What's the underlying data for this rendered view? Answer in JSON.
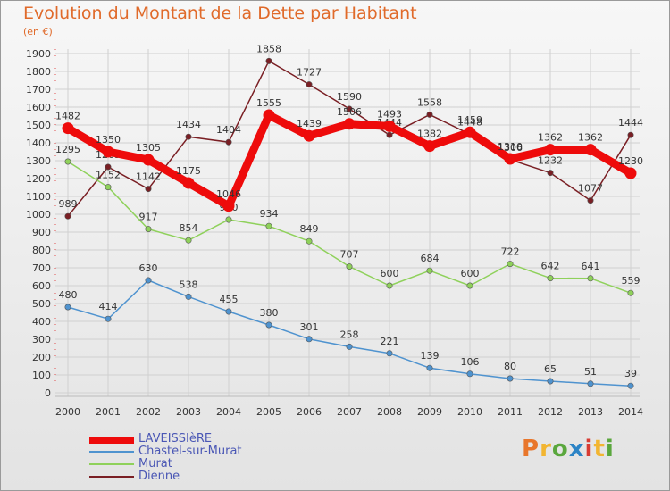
{
  "header": {
    "title": "Evolution du Montant de la Dette par Habitant",
    "subtitle": "(en €)"
  },
  "logo": {
    "text": "Proxiti",
    "colors": [
      "#e8762b",
      "#f2b531",
      "#5aa73d",
      "#2c84c6",
      "#d83c33",
      "#f2b531",
      "#5aa73d"
    ]
  },
  "chart_data": {
    "type": "line",
    "title": "Evolution du Montant de la Dette par Habitant",
    "subtitle": "(en €)",
    "xlabel": "",
    "ylabel": "",
    "ylim": [
      0,
      1900
    ],
    "yticks": [
      0,
      100,
      200,
      300,
      400,
      500,
      600,
      700,
      800,
      900,
      1000,
      1100,
      1200,
      1300,
      1400,
      1500,
      1600,
      1700,
      1800,
      1900
    ],
    "grid": true,
    "legend": "bottom-left",
    "x": [
      "2000",
      "2001",
      "2002",
      "2003",
      "2004",
      "2005",
      "2006",
      "2007",
      "2008",
      "2009",
      "2010",
      "2011",
      "2012",
      "2013",
      "2014"
    ],
    "series": [
      {
        "name": "Dienne",
        "color": "#7a1f24",
        "values": [
          989,
          1265,
          1142,
          1434,
          1404,
          1858,
          1727,
          1590,
          1444,
          1558,
          1448,
          1306,
          1232,
          1077,
          1444
        ]
      },
      {
        "name": "Murat",
        "color": "#8fd15b",
        "values": [
          1295,
          1152,
          917,
          854,
          970,
          934,
          849,
          707,
          600,
          684,
          600,
          722,
          642,
          641,
          559
        ]
      },
      {
        "name": "Chastel-sur-Murat",
        "color": "#4f93cf",
        "values": [
          480,
          414,
          630,
          538,
          455,
          380,
          301,
          258,
          221,
          139,
          106,
          80,
          65,
          51,
          39
        ]
      },
      {
        "name": "LAVEISSIèRE",
        "color": "#ee0b0b",
        "values": [
          1482,
          1350,
          1305,
          1175,
          1046,
          1555,
          1439,
          1506,
          1493,
          1382,
          1459,
          1310,
          1362,
          1362,
          1230
        ]
      }
    ]
  }
}
